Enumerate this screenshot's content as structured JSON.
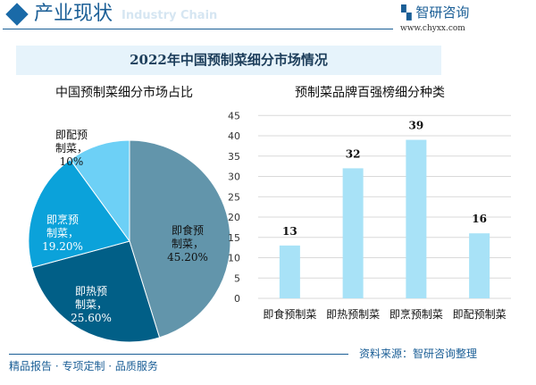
{
  "header": {
    "title": "产业现状",
    "subtitle": "Industry Chain",
    "logo": "智研咨询",
    "logo_url": "www.chyxx.com"
  },
  "banner": "2022年中国预制菜细分市场情况",
  "chart_data": [
    {
      "type": "pie",
      "title": "中国预制菜细分市场占比",
      "slices": [
        {
          "label": "即食预制菜",
          "value": 45.2,
          "text": "45.20%",
          "color": "#6295ab"
        },
        {
          "label": "即热预制菜",
          "value": 25.6,
          "text": "25.60%",
          "color": "#015f87"
        },
        {
          "label": "即烹预制菜",
          "value": 19.2,
          "text": "19.20%",
          "color": "#0ba2da"
        },
        {
          "label": "即配预制菜",
          "value": 10,
          "text": "10%",
          "color": "#6dd0f6"
        }
      ]
    },
    {
      "type": "bar",
      "title": "预制菜品牌百强榜细分种类",
      "categories": [
        "即食预制菜",
        "即热预制菜",
        "即烹预制菜",
        "即配预制菜"
      ],
      "values": [
        13,
        32,
        39,
        16
      ],
      "ylim": [
        0,
        45
      ],
      "yticks": [
        0,
        5,
        10,
        15,
        20,
        25,
        30,
        35,
        40,
        45
      ],
      "grid": true,
      "color": "#a8e2f7"
    }
  ],
  "footer": {
    "left": "精品报告 · 专项定制 · 品质服务",
    "source": "资料来源：智研咨询整理"
  }
}
